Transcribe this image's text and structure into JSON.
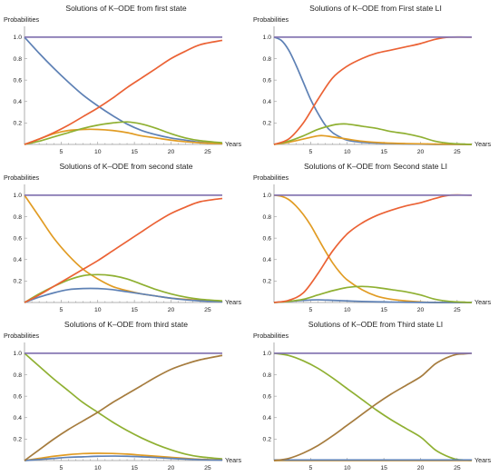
{
  "chart_data": [
    {
      "type": "line",
      "title": "Solutions of K–ODE from first state",
      "xlabel": "Years",
      "ylabel": "Probabilities",
      "xlim": [
        0,
        27
      ],
      "ylim": [
        0,
        1.05
      ],
      "x_ticks": [
        5,
        10,
        15,
        20,
        25
      ],
      "y_ticks": [
        0.2,
        0.4,
        0.6,
        0.8,
        1.0
      ],
      "series": [
        {
          "color": "#5e81b5",
          "x": [
            0,
            2,
            4,
            6,
            8,
            10,
            12,
            14,
            16,
            18,
            20,
            22,
            24,
            27
          ],
          "values": [
            1.0,
            0.85,
            0.71,
            0.58,
            0.46,
            0.36,
            0.27,
            0.19,
            0.13,
            0.09,
            0.06,
            0.04,
            0.02,
            0.01
          ]
        },
        {
          "color": "#e19c24",
          "x": [
            0,
            2,
            4,
            6,
            8,
            10,
            12,
            14,
            16,
            18,
            20,
            22,
            24,
            27
          ],
          "values": [
            0.0,
            0.05,
            0.1,
            0.13,
            0.14,
            0.14,
            0.13,
            0.11,
            0.08,
            0.06,
            0.04,
            0.025,
            0.015,
            0.007
          ]
        },
        {
          "color": "#8fb032",
          "x": [
            0,
            2,
            4,
            6,
            8,
            10,
            12,
            14,
            16,
            18,
            20,
            22,
            24,
            27
          ],
          "values": [
            0.0,
            0.03,
            0.07,
            0.11,
            0.15,
            0.18,
            0.2,
            0.21,
            0.19,
            0.15,
            0.1,
            0.06,
            0.035,
            0.015
          ]
        },
        {
          "color": "#eb6235",
          "x": [
            0,
            2,
            4,
            6,
            8,
            10,
            12,
            14,
            16,
            18,
            20,
            22,
            24,
            27
          ],
          "values": [
            0.0,
            0.05,
            0.11,
            0.18,
            0.26,
            0.34,
            0.43,
            0.53,
            0.62,
            0.71,
            0.8,
            0.87,
            0.93,
            0.97
          ]
        },
        {
          "color": "#8778b3",
          "x": [
            0,
            27
          ],
          "values": [
            1.0,
            1.0
          ]
        }
      ]
    },
    {
      "type": "line",
      "title": "Solutions of K–ODE from First state LI",
      "xlabel": "Years",
      "ylabel": "Probabilities",
      "xlim": [
        0,
        27
      ],
      "ylim": [
        0,
        1.05
      ],
      "x_ticks": [
        5,
        10,
        15,
        20,
        25
      ],
      "y_ticks": [
        0.2,
        0.4,
        0.6,
        0.8,
        1.0
      ],
      "series": [
        {
          "color": "#5e81b5",
          "x": [
            0,
            1,
            2,
            3,
            4,
            5,
            6,
            7,
            8,
            9,
            10,
            12,
            15,
            18,
            22,
            27
          ],
          "values": [
            1.0,
            0.97,
            0.88,
            0.74,
            0.58,
            0.42,
            0.29,
            0.18,
            0.11,
            0.07,
            0.04,
            0.02,
            0.01,
            0.005,
            0.0,
            0.0
          ]
        },
        {
          "color": "#e19c24",
          "x": [
            0,
            2,
            4,
            6,
            7,
            8,
            10,
            12,
            15,
            18,
            22,
            27
          ],
          "values": [
            0.0,
            0.02,
            0.05,
            0.08,
            0.08,
            0.07,
            0.05,
            0.03,
            0.015,
            0.008,
            0.003,
            0.0
          ]
        },
        {
          "color": "#8fb032",
          "x": [
            0,
            2,
            4,
            6,
            8,
            9,
            10,
            12,
            14,
            16,
            18,
            20,
            22,
            24,
            27
          ],
          "values": [
            0.0,
            0.03,
            0.08,
            0.14,
            0.18,
            0.19,
            0.19,
            0.17,
            0.15,
            0.12,
            0.1,
            0.07,
            0.03,
            0.01,
            0.0
          ]
        },
        {
          "color": "#eb6235",
          "x": [
            0,
            2,
            4,
            6,
            8,
            10,
            12,
            14,
            16,
            18,
            20,
            22,
            24,
            27
          ],
          "values": [
            0.0,
            0.05,
            0.2,
            0.42,
            0.62,
            0.73,
            0.8,
            0.85,
            0.88,
            0.91,
            0.94,
            0.98,
            1.0,
            1.0
          ]
        },
        {
          "color": "#8778b3",
          "x": [
            0,
            27
          ],
          "values": [
            1.0,
            1.0
          ]
        }
      ]
    },
    {
      "type": "line",
      "title": "Solutions of K–ODE from second state",
      "xlabel": "Years",
      "ylabel": "Probabilities",
      "xlim": [
        0,
        27
      ],
      "ylim": [
        0,
        1.05
      ],
      "x_ticks": [
        5,
        10,
        15,
        20,
        25
      ],
      "y_ticks": [
        0.2,
        0.4,
        0.6,
        0.8,
        1.0
      ],
      "series": [
        {
          "color": "#e19c24",
          "x": [
            0,
            2,
            4,
            6,
            8,
            10,
            12,
            14,
            16,
            18,
            20,
            22,
            24,
            27
          ],
          "values": [
            1.0,
            0.8,
            0.6,
            0.44,
            0.31,
            0.22,
            0.15,
            0.11,
            0.08,
            0.06,
            0.04,
            0.03,
            0.02,
            0.01
          ]
        },
        {
          "color": "#5e81b5",
          "x": [
            0,
            2,
            4,
            6,
            8,
            10,
            12,
            14,
            16,
            18,
            20,
            22,
            24,
            27
          ],
          "values": [
            0.0,
            0.05,
            0.09,
            0.12,
            0.13,
            0.13,
            0.12,
            0.1,
            0.08,
            0.06,
            0.04,
            0.025,
            0.015,
            0.007
          ]
        },
        {
          "color": "#8fb032",
          "x": [
            0,
            2,
            4,
            6,
            8,
            10,
            12,
            14,
            16,
            18,
            20,
            22,
            24,
            27
          ],
          "values": [
            0.0,
            0.08,
            0.15,
            0.21,
            0.25,
            0.26,
            0.25,
            0.22,
            0.17,
            0.12,
            0.08,
            0.05,
            0.03,
            0.015
          ]
        },
        {
          "color": "#eb6235",
          "x": [
            0,
            2,
            4,
            6,
            8,
            10,
            12,
            14,
            16,
            18,
            20,
            22,
            24,
            27
          ],
          "values": [
            0.0,
            0.07,
            0.15,
            0.23,
            0.31,
            0.39,
            0.48,
            0.57,
            0.66,
            0.75,
            0.83,
            0.89,
            0.94,
            0.97
          ]
        },
        {
          "color": "#8778b3",
          "x": [
            0,
            27
          ],
          "values": [
            1.0,
            1.0
          ]
        }
      ]
    },
    {
      "type": "line",
      "title": "Solutions of K–ODE from Second state LI",
      "xlabel": "Years",
      "ylabel": "Probabilities",
      "xlim": [
        0,
        27
      ],
      "ylim": [
        0,
        1.05
      ],
      "x_ticks": [
        5,
        10,
        15,
        20,
        25
      ],
      "y_ticks": [
        0.2,
        0.4,
        0.6,
        0.8,
        1.0
      ],
      "series": [
        {
          "color": "#e19c24",
          "x": [
            0,
            1,
            2,
            3,
            4,
            5,
            6,
            7,
            8,
            9,
            10,
            12,
            14,
            16,
            18,
            20,
            22,
            27
          ],
          "values": [
            1.0,
            0.99,
            0.96,
            0.9,
            0.82,
            0.72,
            0.6,
            0.48,
            0.37,
            0.28,
            0.21,
            0.12,
            0.06,
            0.03,
            0.015,
            0.005,
            0.0,
            0.0
          ]
        },
        {
          "color": "#5e81b5",
          "x": [
            0,
            2,
            4,
            6,
            8,
            10,
            12,
            15,
            18,
            22,
            27
          ],
          "values": [
            0.0,
            0.01,
            0.02,
            0.025,
            0.02,
            0.015,
            0.01,
            0.005,
            0.002,
            0.0,
            0.0
          ]
        },
        {
          "color": "#8fb032",
          "x": [
            0,
            2,
            4,
            6,
            8,
            10,
            12,
            14,
            16,
            18,
            20,
            22,
            24,
            27
          ],
          "values": [
            0.0,
            0.01,
            0.03,
            0.07,
            0.11,
            0.14,
            0.15,
            0.14,
            0.12,
            0.1,
            0.07,
            0.03,
            0.01,
            0.0
          ]
        },
        {
          "color": "#eb6235",
          "x": [
            0,
            2,
            4,
            6,
            8,
            10,
            12,
            14,
            16,
            18,
            20,
            22,
            24,
            27
          ],
          "values": [
            0.0,
            0.02,
            0.09,
            0.27,
            0.48,
            0.64,
            0.74,
            0.81,
            0.86,
            0.9,
            0.93,
            0.97,
            1.0,
            1.0
          ]
        },
        {
          "color": "#8778b3",
          "x": [
            0,
            27
          ],
          "values": [
            1.0,
            1.0
          ]
        }
      ]
    },
    {
      "type": "line",
      "title": "Solutions of K–ODE from third state",
      "xlabel": "Years",
      "ylabel": "Probabilities",
      "xlim": [
        0,
        27
      ],
      "ylim": [
        0,
        1.05
      ],
      "x_ticks": [
        5,
        10,
        15,
        20,
        25
      ],
      "y_ticks": [
        0.2,
        0.4,
        0.6,
        0.8,
        1.0
      ],
      "series": [
        {
          "color": "#8fb032",
          "x": [
            0,
            2,
            4,
            6,
            8,
            10,
            12,
            14,
            16,
            18,
            20,
            22,
            24,
            27
          ],
          "values": [
            1.0,
            0.88,
            0.76,
            0.65,
            0.54,
            0.45,
            0.36,
            0.28,
            0.21,
            0.15,
            0.1,
            0.06,
            0.035,
            0.015
          ]
        },
        {
          "color": "#e19c24",
          "x": [
            0,
            2,
            4,
            6,
            8,
            10,
            12,
            14,
            16,
            18,
            20,
            22,
            24,
            27
          ],
          "values": [
            0.0,
            0.02,
            0.04,
            0.055,
            0.065,
            0.068,
            0.066,
            0.06,
            0.05,
            0.04,
            0.03,
            0.02,
            0.012,
            0.006
          ]
        },
        {
          "color": "#5e81b5",
          "x": [
            0,
            2,
            4,
            6,
            8,
            10,
            12,
            14,
            16,
            18,
            20,
            22,
            24,
            27
          ],
          "values": [
            0.0,
            0.01,
            0.02,
            0.03,
            0.035,
            0.04,
            0.042,
            0.04,
            0.035,
            0.028,
            0.02,
            0.014,
            0.008,
            0.004
          ]
        },
        {
          "color": "#a67c3e",
          "x": [
            0,
            2,
            4,
            6,
            8,
            10,
            12,
            14,
            16,
            18,
            20,
            22,
            24,
            27
          ],
          "values": [
            0.0,
            0.1,
            0.2,
            0.29,
            0.37,
            0.45,
            0.54,
            0.62,
            0.7,
            0.78,
            0.85,
            0.9,
            0.94,
            0.98
          ]
        },
        {
          "color": "#8778b3",
          "x": [
            0,
            27
          ],
          "values": [
            1.0,
            1.0
          ]
        }
      ]
    },
    {
      "type": "line",
      "title": "Solutions of K–ODE from Third state LI",
      "xlabel": "Years",
      "ylabel": "Probabilities",
      "xlim": [
        0,
        27
      ],
      "ylim": [
        0,
        1.05
      ],
      "x_ticks": [
        5,
        10,
        15,
        20,
        25
      ],
      "y_ticks": [
        0.2,
        0.4,
        0.6,
        0.8,
        1.0
      ],
      "series": [
        {
          "color": "#8fb032",
          "x": [
            0,
            2,
            4,
            6,
            8,
            10,
            12,
            14,
            16,
            18,
            20,
            21,
            22,
            23,
            24,
            25,
            26,
            27
          ],
          "values": [
            1.0,
            0.98,
            0.93,
            0.86,
            0.77,
            0.67,
            0.57,
            0.47,
            0.38,
            0.3,
            0.22,
            0.16,
            0.1,
            0.06,
            0.03,
            0.01,
            0.005,
            0.0
          ]
        },
        {
          "color": "#e19c24",
          "x": [
            0,
            27
          ],
          "values": [
            0.0,
            0.0
          ]
        },
        {
          "color": "#5e81b5",
          "x": [
            0,
            27
          ],
          "values": [
            0.005,
            0.005
          ]
        },
        {
          "color": "#a67c3e",
          "x": [
            0,
            2,
            4,
            6,
            8,
            10,
            12,
            14,
            16,
            18,
            20,
            21,
            22,
            23,
            24,
            25,
            26,
            27
          ],
          "values": [
            0.0,
            0.02,
            0.07,
            0.14,
            0.23,
            0.33,
            0.43,
            0.53,
            0.62,
            0.7,
            0.78,
            0.84,
            0.9,
            0.94,
            0.97,
            0.99,
            0.995,
            1.0
          ]
        },
        {
          "color": "#8778b3",
          "x": [
            0,
            27
          ],
          "values": [
            1.0,
            1.0
          ]
        }
      ]
    }
  ]
}
